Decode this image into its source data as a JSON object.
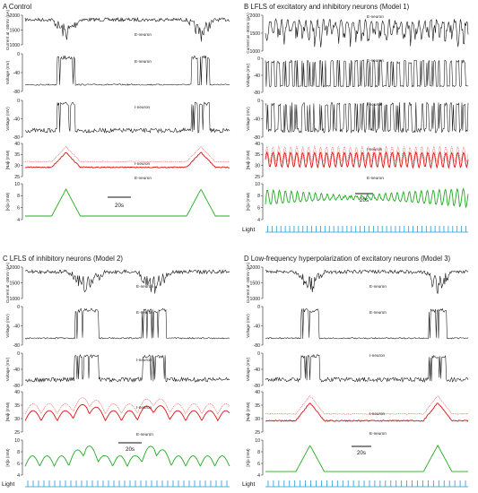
{
  "colors": {
    "trace": "#111111",
    "na_e": "#dd1111",
    "na_i": "#ee5555",
    "k": "#22aa22",
    "light": "#2299dd"
  },
  "chart_data": [
    {
      "type": "line",
      "title": "A Control",
      "light": false,
      "traces": [
        {
          "kind": "current",
          "ylabel": "Current at -30mV (pA)",
          "ticks": [
            "2000",
            "1500",
            "1000"
          ],
          "ylim": [
            900,
            2400
          ],
          "label": "E-neuron"
        },
        {
          "kind": "voltage",
          "ylabel": "Voltage (mV)",
          "ticks": [
            "0",
            "-40",
            "-80"
          ],
          "ylim": [
            -90,
            20
          ],
          "label": "E-neuron"
        },
        {
          "kind": "voltage",
          "ylabel": "Voltage (mV)",
          "ticks": [
            "0",
            "-40",
            "-80"
          ],
          "ylim": [
            -90,
            20
          ],
          "label": "I-neuron"
        },
        {
          "kind": "na",
          "ylabel": "[Na]i (mM)",
          "ticks": [
            "40",
            "35",
            "30",
            "25"
          ],
          "ylim": [
            24,
            40
          ],
          "labels": [
            "I-neuron",
            "E-neuron"
          ]
        },
        {
          "kind": "k",
          "ylabel": "[K]o (mM)",
          "ticks": [
            "10",
            "8",
            "6",
            "4"
          ],
          "ylim": [
            4,
            10
          ]
        }
      ],
      "scale_bar": "20s"
    },
    {
      "type": "line",
      "title": "B LFLS of excitatory and inhibitory neurons (Model 1)",
      "light": true,
      "light_label": "Light",
      "traces": [
        {
          "kind": "current",
          "ylabel": "Current at -30mV (pA)",
          "ticks": [
            "2000",
            "1500",
            "1000"
          ],
          "ylim": [
            900,
            2400
          ],
          "label": "E-neuron"
        },
        {
          "kind": "voltage",
          "ylabel": "Voltage (mV)",
          "ticks": [
            "0",
            "-40",
            "-80"
          ],
          "ylim": [
            -90,
            20
          ],
          "label": "E-neuron"
        },
        {
          "kind": "voltage",
          "ylabel": "Voltage (mV)",
          "ticks": [
            "0",
            "-40",
            "-80"
          ],
          "ylim": [
            -90,
            20
          ],
          "label": "I-neuron"
        },
        {
          "kind": "na",
          "ylabel": "[Na]i (mM)",
          "ticks": [
            "40",
            "35",
            "30",
            "25"
          ],
          "ylim": [
            24,
            40
          ],
          "labels": [
            "I-neuron",
            "E-neuron"
          ]
        },
        {
          "kind": "k",
          "ylabel": "[K]o (mM)",
          "ticks": [
            "10",
            "8",
            "6",
            "4"
          ],
          "ylim": [
            4,
            10
          ]
        }
      ],
      "scale_bar": "20s"
    },
    {
      "type": "line",
      "title": "C LFLS of inhibitory neurons (Model 2)",
      "light": true,
      "light_label": "Light",
      "traces": [
        {
          "kind": "current",
          "ylabel": "Current at -30mV (pA)",
          "ticks": [
            "2000",
            "1500",
            "1000"
          ],
          "ylim": [
            900,
            2400
          ],
          "label": "E-neuron"
        },
        {
          "kind": "voltage",
          "ylabel": "Voltage (mV)",
          "ticks": [
            "0",
            "-40",
            "-80"
          ],
          "ylim": [
            -90,
            20
          ],
          "label": "E-neuron"
        },
        {
          "kind": "voltage",
          "ylabel": "Voltage (mV)",
          "ticks": [
            "0",
            "-40",
            "-80"
          ],
          "ylim": [
            -90,
            20
          ],
          "label": "I-neuron"
        },
        {
          "kind": "na",
          "ylabel": "[Na]i (mM)",
          "ticks": [
            "40",
            "35",
            "30",
            "25"
          ],
          "ylim": [
            24,
            40
          ],
          "labels": [
            "I-neuron",
            "E-neuron"
          ]
        },
        {
          "kind": "k",
          "ylabel": "[K]o (mM)",
          "ticks": [
            "10",
            "8",
            "6",
            "4"
          ],
          "ylim": [
            4,
            10
          ]
        }
      ],
      "scale_bar": "20s"
    },
    {
      "type": "line",
      "title": "D Low-frequency hyperpolarization of excitatory neurons (Model 3)",
      "light": true,
      "light_label": "Light",
      "traces": [
        {
          "kind": "current",
          "ylabel": "Current at -30mV (pA)",
          "ticks": [
            "2000",
            "1500",
            "1000"
          ],
          "ylim": [
            900,
            2400
          ],
          "label": "E-neuron"
        },
        {
          "kind": "voltage",
          "ylabel": "Voltage (mV)",
          "ticks": [
            "0",
            "-40",
            "-80"
          ],
          "ylim": [
            -90,
            20
          ],
          "label": "E-neuron"
        },
        {
          "kind": "voltage",
          "ylabel": "Voltage (mV)",
          "ticks": [
            "0",
            "-40",
            "-80"
          ],
          "ylim": [
            -90,
            20
          ],
          "label": "I-neuron"
        },
        {
          "kind": "na",
          "ylabel": "[Na]i (mM)",
          "ticks": [
            "40",
            "35",
            "30",
            "25"
          ],
          "ylim": [
            24,
            40
          ],
          "labels": [
            "I-neuron",
            "E-neuron"
          ]
        },
        {
          "kind": "k",
          "ylabel": "[K]o (mM)",
          "ticks": [
            "10",
            "8",
            "6",
            "4"
          ],
          "ylim": [
            4,
            10
          ]
        }
      ],
      "scale_bar": "20s"
    }
  ]
}
